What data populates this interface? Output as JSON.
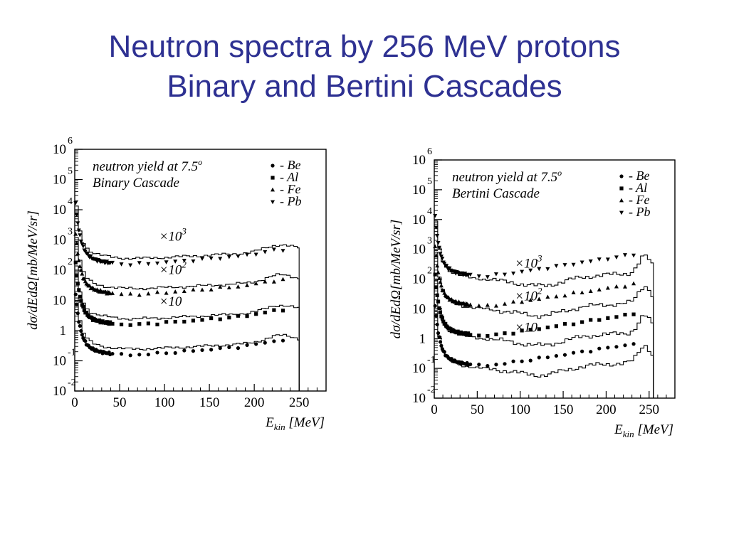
{
  "slide": {
    "title_line1": "Neutron spectra by 256 MeV protons",
    "title_line2": "Binary and Bertini Cascades"
  },
  "colors": {
    "title": "#2e3192",
    "ink": "#000000"
  },
  "chart_data": [
    {
      "type": "scatter",
      "note_line1": "neutron yield at 7.5",
      "note_sup": "o",
      "note_line2": "Binary Cascade",
      "ylabel": "dσ/dEdΩ[mb/MeV/sr]",
      "xlabel_main": "E",
      "xlabel_sub": "kin",
      "xlabel_unit": "[MeV]",
      "xlim": [
        0,
        280
      ],
      "ylim_log10": [
        -2,
        6
      ],
      "log_y": true,
      "x_ticks": [
        "0",
        "50",
        "100",
        "150",
        "200",
        "250"
      ],
      "y_ticks": [
        {
          "base": "10",
          "exp": "6"
        },
        {
          "base": "10",
          "exp": "5"
        },
        {
          "base": "10",
          "exp": "4"
        },
        {
          "base": "10",
          "exp": "3"
        },
        {
          "base": "10",
          "exp": "2"
        },
        {
          "base": "10",
          "exp": ""
        },
        {
          "base": "1",
          "exp": ""
        },
        {
          "base": "10",
          "exp": "-1"
        },
        {
          "base": "10",
          "exp": "-2"
        }
      ],
      "scale_labels": [
        {
          "text": "×10",
          "exp": "3"
        },
        {
          "text": "×10",
          "exp": "2"
        },
        {
          "text": "×10",
          "exp": ""
        }
      ],
      "legend": [
        {
          "marker": "circle",
          "label": "- Be"
        },
        {
          "marker": "square",
          "label": "- Al"
        },
        {
          "marker": "triangle-up",
          "label": "- Fe"
        },
        {
          "marker": "triangle-down",
          "label": "- Pb"
        }
      ],
      "series": [
        {
          "name": "Be",
          "marker": "circle",
          "scale": 1,
          "curve": "binary",
          "cutoff": 250
        },
        {
          "name": "Al",
          "marker": "square",
          "scale": 10,
          "curve": "binary",
          "cutoff": 250
        },
        {
          "name": "Fe",
          "marker": "triangle-up",
          "scale": 100,
          "curve": "binary",
          "cutoff": 250
        },
        {
          "name": "Pb",
          "marker": "triangle-down",
          "scale": 1000,
          "curve": "binary",
          "cutoff": 250
        }
      ]
    },
    {
      "type": "scatter",
      "note_line1": "neutron yield at 7.5",
      "note_sup": "o",
      "note_line2": "Bertini Cascade",
      "ylabel": "dσ/dEdΩ[mb/MeV/sr]",
      "xlabel_main": "E",
      "xlabel_sub": "kin",
      "xlabel_unit": "[MeV]",
      "xlim": [
        0,
        280
      ],
      "ylim_log10": [
        -2,
        6
      ],
      "log_y": true,
      "x_ticks": [
        "0",
        "50",
        "100",
        "150",
        "200",
        "250"
      ],
      "y_ticks": [
        {
          "base": "10",
          "exp": "6"
        },
        {
          "base": "10",
          "exp": "5"
        },
        {
          "base": "10",
          "exp": "4"
        },
        {
          "base": "10",
          "exp": "3"
        },
        {
          "base": "10",
          "exp": "2"
        },
        {
          "base": "10",
          "exp": ""
        },
        {
          "base": "1",
          "exp": ""
        },
        {
          "base": "10",
          "exp": "-1"
        },
        {
          "base": "10",
          "exp": "-2"
        }
      ],
      "scale_labels": [
        {
          "text": "×10",
          "exp": "3"
        },
        {
          "text": "×10",
          "exp": "2"
        },
        {
          "text": "×10",
          "exp": ""
        }
      ],
      "legend": [
        {
          "marker": "circle",
          "label": "- Be"
        },
        {
          "marker": "square",
          "label": "- Al"
        },
        {
          "marker": "triangle-up",
          "label": "- Fe"
        },
        {
          "marker": "triangle-down",
          "label": "- Pb"
        }
      ],
      "series": [
        {
          "name": "Be",
          "marker": "circle",
          "scale": 1,
          "curve": "bertini",
          "cutoff": 255
        },
        {
          "name": "Al",
          "marker": "square",
          "scale": 10,
          "curve": "bertini",
          "cutoff": 255
        },
        {
          "name": "Fe",
          "marker": "triangle-up",
          "scale": 100,
          "curve": "bertini",
          "cutoff": 255
        },
        {
          "name": "Pb",
          "marker": "triangle-down",
          "scale": 1000,
          "curve": "bertini",
          "cutoff": 255
        }
      ]
    }
  ]
}
